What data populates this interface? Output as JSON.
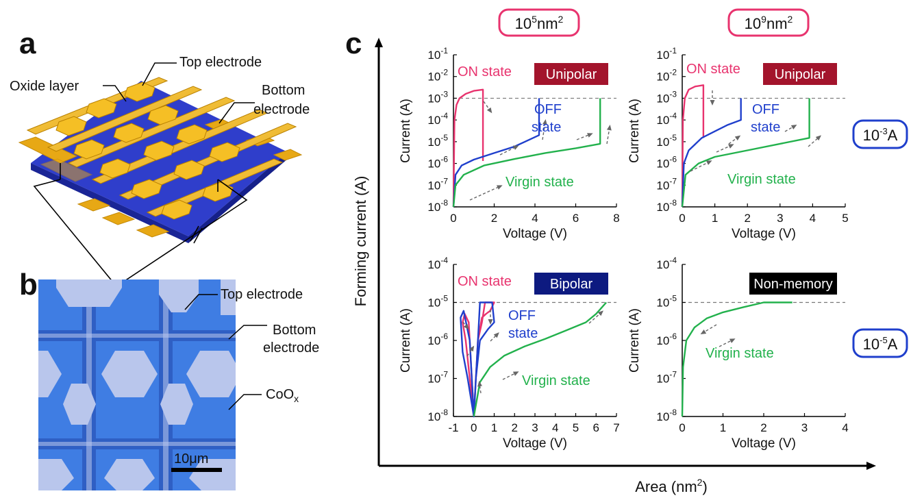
{
  "panel_a": {
    "label": "a",
    "top_electrode": "Top electrode",
    "oxide_layer": "Oxide layer",
    "bottom_electrode_1": "Bottom",
    "bottom_electrode_2": "electrode",
    "colors": {
      "electrode": "#f2b51a",
      "oxide": "#2a3ad8"
    }
  },
  "panel_b": {
    "label": "b",
    "top_electrode": "Top electrode",
    "bottom_electrode_1": "Bottom",
    "bottom_electrode_2": "electrode",
    "coox_main": "CoO",
    "coox_sub": "x",
    "scale_bar": "10μm",
    "colors": {
      "background": "#3c78d8",
      "pad": "#b8c4ec"
    }
  },
  "panel_c": {
    "label": "c",
    "ylabel": "Forming current (A)",
    "xlabel_main": "Area (nm",
    "xlabel_sup": "2",
    "xlabel_end": ")",
    "col_labels": [
      {
        "base": "10",
        "exp": "5",
        "unit": "nm",
        "unit_exp": "2"
      },
      {
        "base": "10",
        "exp": "9",
        "unit": "nm",
        "unit_exp": "2"
      }
    ],
    "row_labels": [
      {
        "base": "10",
        "exp": "-3",
        "unit": "A"
      },
      {
        "base": "10",
        "exp": "-5",
        "unit": "A"
      }
    ],
    "colors": {
      "on": "#e8336e",
      "off": "#1f3fcc",
      "virgin": "#22b14c",
      "pink_frame": "#e8336e",
      "blue_frame": "#1f3fcc"
    }
  },
  "chart_data": [
    {
      "type": "line",
      "xlabel": "Voltage (V)",
      "ylabel": "Current (A)",
      "xlim": [
        0,
        8
      ],
      "ylim_exp": [
        -8,
        -1
      ],
      "yscale": "log",
      "xticks": [
        "0",
        "2",
        "4",
        "6",
        "8"
      ],
      "yticks_exp": [
        "-8",
        "-7",
        "-6",
        "-5",
        "-4",
        "-3",
        "-2",
        "-1"
      ],
      "compliance": 0.001,
      "mode_label": "Unipolar",
      "mode_color": "#a3142c",
      "series": [
        {
          "name": "ON state",
          "x": [
            0,
            0.05,
            0.15,
            0.3,
            0.6,
            1.0,
            1.45,
            1.45,
            1.45
          ],
          "y": [
            1e-08,
            0.0001,
            0.0005,
            0.001,
            0.0016,
            0.0022,
            0.0025,
            0.0001,
            1.3e-06
          ]
        },
        {
          "name": "OFF state",
          "x": [
            0,
            0.1,
            0.4,
            1.0,
            2.0,
            3.0,
            4.2,
            4.2
          ],
          "y": [
            1e-08,
            3e-07,
            8e-07,
            1.5e-06,
            3e-06,
            6e-06,
            2e-05,
            0.001
          ]
        },
        {
          "name": "Virgin state",
          "x": [
            0,
            0.1,
            0.5,
            1.5,
            3.0,
            4.5,
            6.0,
            7.2,
            7.2
          ],
          "y": [
            1e-08,
            1e-07,
            3e-07,
            8e-07,
            1.6e-06,
            3e-06,
            5e-06,
            8e-06,
            0.001
          ]
        }
      ]
    },
    {
      "type": "line",
      "xlabel": "Voltage (V)",
      "ylabel": "Current (A)",
      "xlim": [
        0,
        5
      ],
      "ylim_exp": [
        -8,
        -1
      ],
      "yscale": "log",
      "xticks": [
        "0",
        "1",
        "2",
        "3",
        "4",
        "5"
      ],
      "yticks_exp": [
        "-8",
        "-7",
        "-6",
        "-5",
        "-4",
        "-3",
        "-2",
        "-1"
      ],
      "compliance": 0.001,
      "mode_label": "Unipolar",
      "mode_color": "#a3142c",
      "series": [
        {
          "name": "ON state",
          "x": [
            0,
            0.02,
            0.08,
            0.2,
            0.4,
            0.65,
            0.65,
            0.65
          ],
          "y": [
            1e-08,
            0.0001,
            0.001,
            0.0025,
            0.0035,
            0.004,
            0.0001,
            1.5e-05
          ]
        },
        {
          "name": "OFF state",
          "x": [
            0,
            0.05,
            0.2,
            0.6,
            1.0,
            1.4,
            1.8,
            1.8
          ],
          "y": [
            1e-08,
            1e-06,
            4e-06,
            1.5e-05,
            3e-05,
            6e-05,
            0.0001,
            0.001
          ]
        },
        {
          "name": "Virgin state",
          "x": [
            0,
            0.1,
            0.5,
            1.0,
            2.0,
            3.0,
            3.9,
            3.9
          ],
          "y": [
            1e-08,
            3e-07,
            1e-06,
            2e-06,
            4e-06,
            8e-06,
            1.5e-05,
            0.001
          ]
        }
      ]
    },
    {
      "type": "line",
      "xlabel": "Voltage (V)",
      "ylabel": "Current (A)",
      "xlim": [
        -1,
        7
      ],
      "ylim_exp": [
        -8,
        -4
      ],
      "yscale": "log",
      "xticks": [
        "-1",
        "0",
        "1",
        "2",
        "3",
        "4",
        "5",
        "6",
        "7"
      ],
      "yticks_exp": [
        "-8",
        "-7",
        "-6",
        "-5",
        "-4"
      ],
      "compliance": 1e-05,
      "mode_label": "Bipolar",
      "mode_color": "#0d1a80",
      "series": [
        {
          "name": "ON state",
          "x": [
            0,
            -0.2,
            -0.4,
            -0.55,
            -0.45,
            -0.25,
            0,
            0.2,
            0.4,
            0.55,
            1.0,
            0.8,
            0.6,
            0.4,
            0.2,
            0
          ],
          "y": [
            1e-08,
            1e-07,
            1e-06,
            3e-06,
            5e-06,
            3e-06,
            1e-08,
            1e-06,
            3e-06,
            1e-05,
            1e-05,
            6e-06,
            5e-06,
            4e-06,
            1e-06,
            1e-08
          ]
        },
        {
          "name": "OFF state",
          "x": [
            0,
            -0.3,
            -0.55,
            -0.65,
            -0.5,
            -0.2,
            0,
            0.1,
            0.3,
            0.7,
            1.0,
            0.9,
            0.6,
            0.3,
            0
          ],
          "y": [
            1e-08,
            1e-07,
            5e-07,
            4e-06,
            6e-06,
            1e-06,
            1e-08,
            1e-07,
            1e-06,
            2e-06,
            3e-06,
            1e-05,
            1e-05,
            1e-05,
            1e-08
          ]
        },
        {
          "name": "Virgin state",
          "x": [
            0,
            0.3,
            0.8,
            1.5,
            2.5,
            3.5,
            4.5,
            5.5,
            6.0,
            6.5
          ],
          "y": [
            1e-08,
            8e-08,
            2e-07,
            4e-07,
            7e-07,
            1.1e-06,
            1.8e-06,
            3e-06,
            5e-06,
            1e-05
          ]
        }
      ]
    },
    {
      "type": "line",
      "xlabel": "Voltage (V)",
      "ylabel": "Current (A)",
      "xlim": [
        0,
        4
      ],
      "ylim_exp": [
        -8,
        -4
      ],
      "yscale": "log",
      "xticks": [
        "0",
        "1",
        "2",
        "3",
        "4"
      ],
      "yticks_exp": [
        "-8",
        "-7",
        "-6",
        "-5",
        "-4"
      ],
      "compliance": 1e-05,
      "mode_label": "Non-memory",
      "mode_color": "#000000",
      "series": [
        {
          "name": "Virgin state",
          "x": [
            0,
            0.02,
            0.1,
            0.3,
            0.6,
            1.0,
            1.5,
            2.0,
            2.7
          ],
          "y": [
            1e-08,
            2e-07,
            1e-06,
            2.2e-06,
            3.8e-06,
            5.5e-06,
            7.5e-06,
            1e-05,
            1e-05
          ]
        }
      ]
    }
  ]
}
